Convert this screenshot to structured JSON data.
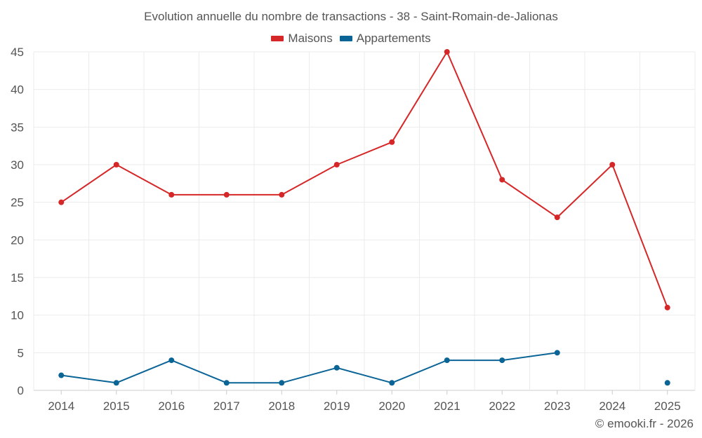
{
  "chart_data": {
    "type": "line",
    "title": "Evolution annuelle du nombre de transactions - 38 - Saint-Romain-de-Jalionas",
    "categories": [
      "2014",
      "2015",
      "2016",
      "2017",
      "2018",
      "2019",
      "2020",
      "2021",
      "2022",
      "2023",
      "2024",
      "2025"
    ],
    "series": [
      {
        "name": "Maisons",
        "color": "#d62728",
        "values": [
          25,
          30,
          26,
          26,
          26,
          30,
          33,
          45,
          28,
          23,
          30,
          11
        ]
      },
      {
        "name": "Appartements",
        "color": "#0a6496",
        "values": [
          2,
          1,
          4,
          1,
          1,
          3,
          1,
          4,
          4,
          5,
          null,
          1
        ]
      }
    ],
    "ylim": [
      0,
      45
    ],
    "yticks": [
      "0",
      "5",
      "10",
      "15",
      "20",
      "25",
      "30",
      "35",
      "40",
      "45"
    ],
    "xlabel": "",
    "ylabel": "",
    "grid": true,
    "legend": "top-center"
  },
  "footer": {
    "copyright": "© emooki.fr - 2026"
  }
}
